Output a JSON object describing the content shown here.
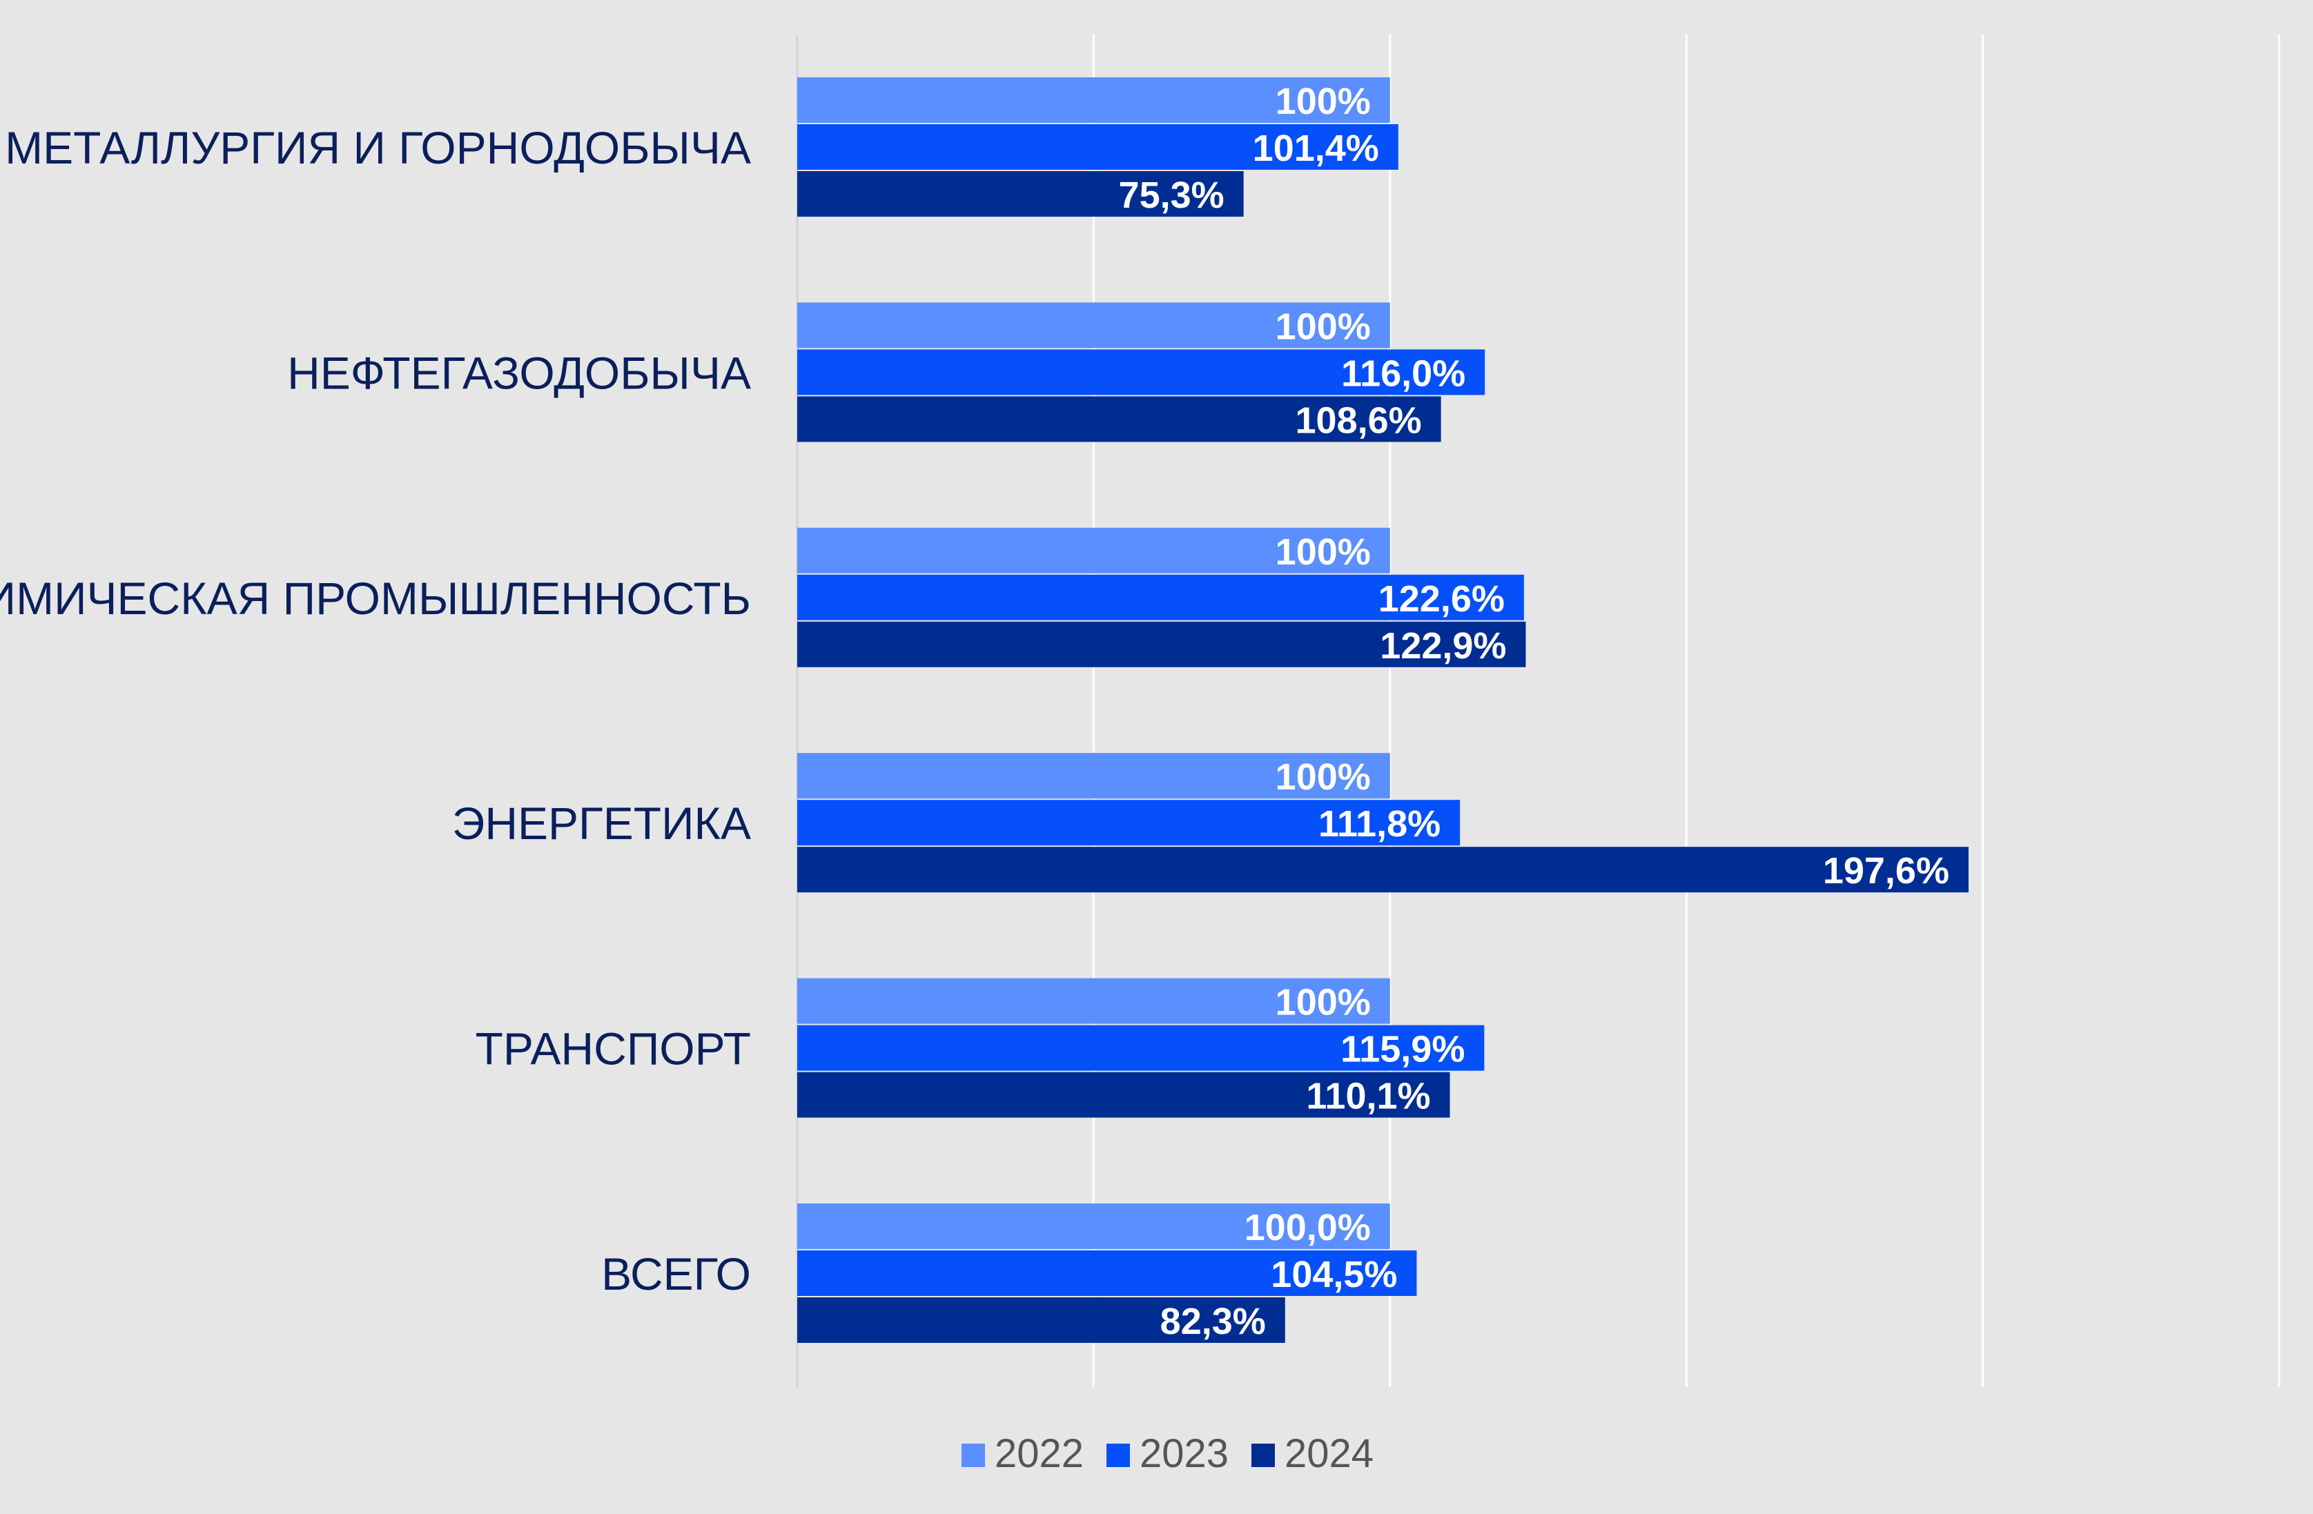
{
  "chart_data": {
    "type": "bar",
    "orientation": "horizontal",
    "categories": [
      "МЕТАЛЛУРГИЯ И ГОРНОДОБЫЧА",
      "НЕФТЕГАЗОДОБЫЧА",
      "ХИМИЧЕСКАЯ ПРОМЫШЛЕННОСТЬ",
      "ЭНЕРГЕТИКА",
      "ТРАНСПОРТ",
      "ВСЕГО"
    ],
    "series": [
      {
        "name": "2022",
        "color": "#5b8ffe",
        "values": [
          100,
          100,
          100,
          100,
          100,
          100
        ],
        "labels": [
          "100%",
          "100%",
          "100%",
          "100%",
          "100%",
          "100,0%"
        ]
      },
      {
        "name": "2023",
        "color": "#0550f8",
        "values": [
          101.4,
          116.0,
          122.6,
          111.8,
          115.9,
          104.5
        ],
        "labels": [
          "101,4%",
          "116,0%",
          "122,6%",
          "111,8%",
          "115,9%",
          "104,5%"
        ]
      },
      {
        "name": "2024",
        "color": "#002d91",
        "values": [
          75.3,
          108.6,
          122.9,
          197.6,
          110.1,
          82.3
        ],
        "labels": [
          "75,3%",
          "108,6%",
          "122,9%",
          "197,6%",
          "110,1%",
          "82,3%"
        ]
      }
    ],
    "xlim": [
      0,
      250
    ],
    "grid_step": 50,
    "tick_labels_visible": false,
    "grid": true,
    "legend_position": "bottom-center",
    "title": "",
    "xlabel": "",
    "ylabel": ""
  },
  "colors": {
    "background": "#e6e6e6",
    "gridline": "#ffffff",
    "category_label": "#0a1f5c",
    "data_label": "#ffffff",
    "legend_text": "#555555"
  }
}
